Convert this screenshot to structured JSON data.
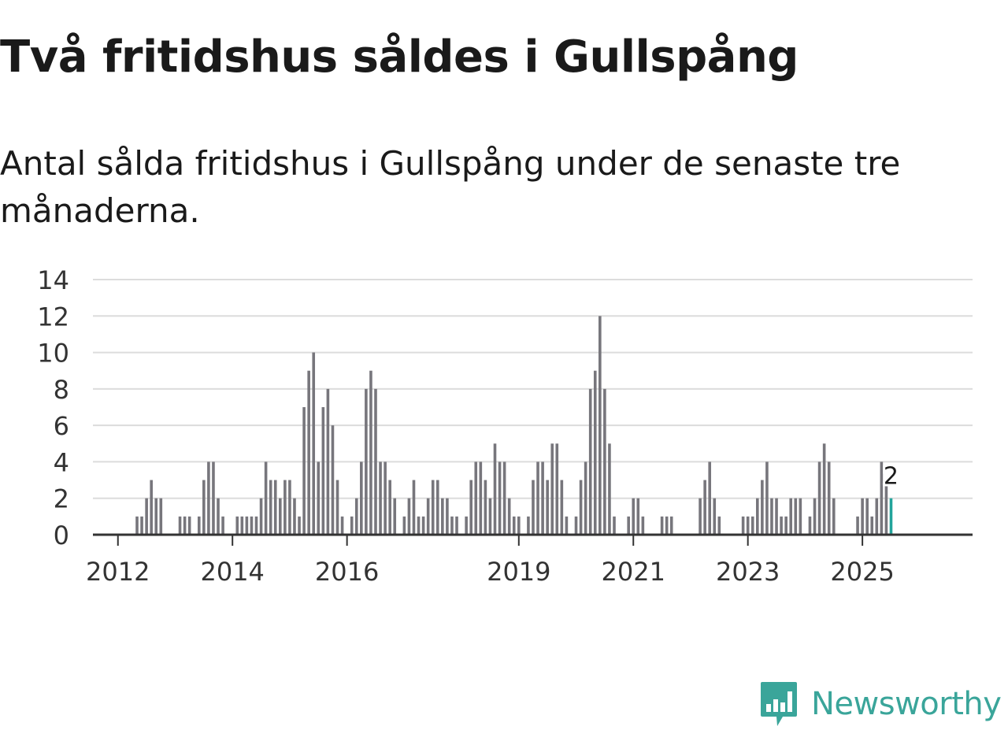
{
  "header": {
    "title": "Två fritidshus såldes i Gullspång",
    "subtitle": "Antal sålda fritidshus i Gullspång under de senaste tre månaderna."
  },
  "brand": {
    "name": "Newsworthy",
    "icon": "newsworthy-logo-icon",
    "color": "#3aa59a"
  },
  "colors": {
    "bar": "#77767c",
    "highlight": "#23a49b",
    "grid": "#dcdcdc",
    "axis": "#333333"
  },
  "chart_data": {
    "type": "bar",
    "title": "Två fritidshus såldes i Gullspång",
    "subtitle": "Antal sålda fritidshus i Gullspång under de senaste tre månaderna.",
    "xlabel": "",
    "ylabel": "",
    "ylim": [
      0,
      14
    ],
    "yticks": [
      0,
      2,
      4,
      6,
      8,
      10,
      12,
      14
    ],
    "xtick_labels": [
      "2012",
      "2014",
      "2016",
      "2019",
      "2021",
      "2023",
      "2025"
    ],
    "grid": true,
    "legend": "none",
    "start": "2011-04",
    "frequency": "monthly",
    "values": [
      0,
      0,
      0,
      0,
      0,
      0,
      0,
      0,
      0,
      0,
      0,
      0,
      0,
      1,
      1,
      2,
      3,
      2,
      2,
      0,
      0,
      0,
      1,
      1,
      1,
      0,
      1,
      3,
      4,
      4,
      2,
      1,
      0,
      0,
      1,
      1,
      1,
      1,
      1,
      2,
      4,
      3,
      3,
      2,
      3,
      3,
      2,
      1,
      7,
      9,
      10,
      4,
      7,
      8,
      6,
      3,
      1,
      0,
      1,
      2,
      4,
      8,
      9,
      8,
      4,
      4,
      3,
      2,
      0,
      1,
      2,
      3,
      1,
      1,
      2,
      3,
      3,
      2,
      2,
      1,
      1,
      0,
      1,
      3,
      4,
      4,
      3,
      2,
      5,
      4,
      4,
      2,
      1,
      1,
      0,
      1,
      3,
      4,
      4,
      3,
      5,
      5,
      3,
      1,
      0,
      1,
      3,
      4,
      8,
      9,
      12,
      8,
      5,
      1,
      0,
      0,
      1,
      2,
      2,
      1,
      0,
      0,
      0,
      1,
      1,
      1,
      0,
      0,
      0,
      0,
      0,
      2,
      3,
      4,
      2,
      1,
      0,
      0,
      0,
      0,
      1,
      1,
      1,
      2,
      3,
      4,
      2,
      2,
      1,
      1,
      2,
      2,
      2,
      0,
      1,
      2,
      4,
      5,
      4,
      2,
      0,
      0,
      0,
      0,
      1,
      2,
      2,
      1,
      2,
      4,
      3,
      2
    ],
    "highlight_last": true,
    "annotation": {
      "label": "2",
      "value": 2
    }
  }
}
